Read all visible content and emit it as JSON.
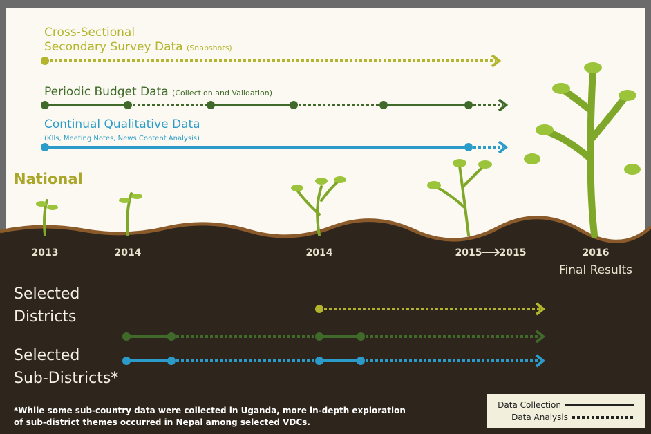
{
  "streams": [
    {
      "title_lines": [
        "Cross-Sectional",
        "Secondary Survey Data"
      ],
      "note": "(Snapshots)"
    },
    {
      "title_lines": [
        "Periodic Budget Data"
      ],
      "note": "(Collection and Validation)"
    },
    {
      "title_lines": [
        "Continual Qualitative Data"
      ],
      "note": "(KIIs, Meeting Notes, News Content Analysis)"
    }
  ],
  "levels": {
    "national": "National",
    "districts": [
      "Selected",
      "Districts"
    ],
    "sub_districts": [
      "Selected",
      "Sub-Districts*"
    ]
  },
  "timeline": {
    "years": [
      "2013",
      "2014",
      "2014",
      "2015",
      "2015",
      "2016"
    ],
    "final": "Final Results"
  },
  "footnote": [
    "*While some sub-country data were collected in Uganda, more in-depth exploration",
    "of sub-district themes occurred in Nepal among selected VDCs."
  ],
  "legend": {
    "collection": "Data Collection",
    "analysis": "Data Analysis"
  }
}
